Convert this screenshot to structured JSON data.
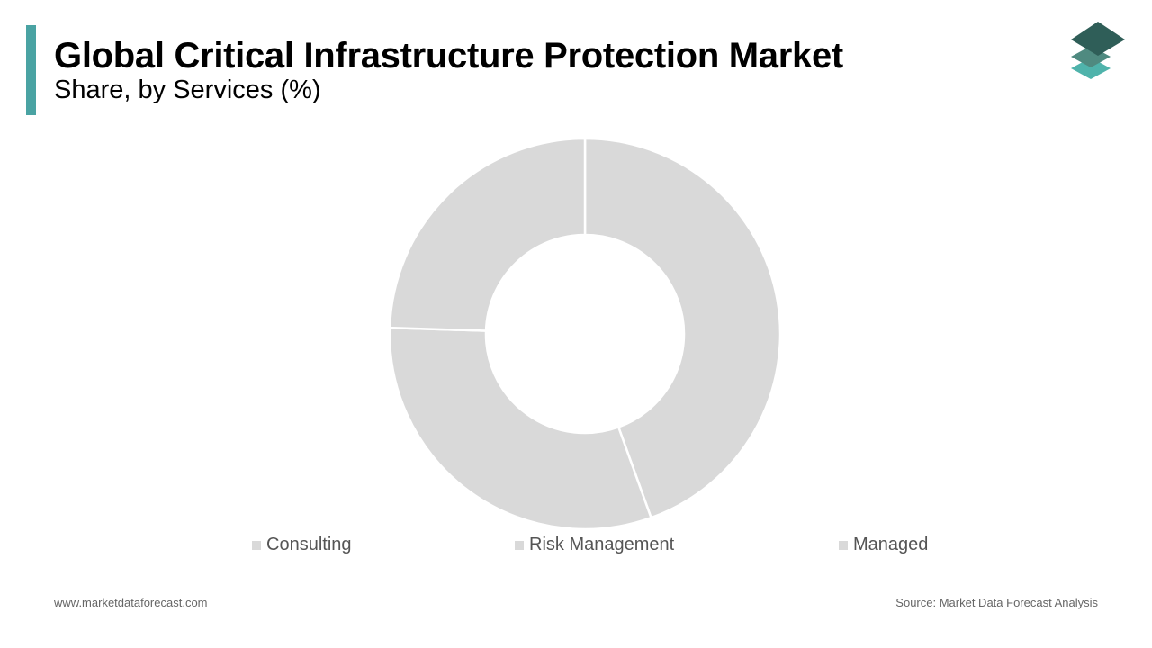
{
  "header": {
    "title": "Global Critical Infrastructure Protection Market",
    "subtitle": "Share, by Services (%)"
  },
  "colors": {
    "accent": "#4aa3a3",
    "logo_top": "#2f5e58",
    "logo_middle": "#4f8a80",
    "logo_bottom": "#4fb3ab",
    "slice_fill": "#d9d9d9",
    "slice_stroke": "#ffffff"
  },
  "chart_data": {
    "type": "pie",
    "donut": true,
    "categories": [
      "Consulting",
      "Risk Management",
      "Managed"
    ],
    "values": [
      44.5,
      31.0,
      24.5
    ],
    "legend_position": "bottom"
  },
  "footer": {
    "website": "www.marketdataforecast.com",
    "source": "Source: Market Data Forecast Analysis"
  },
  "logo": {
    "icon": "stacked-layers-icon"
  }
}
